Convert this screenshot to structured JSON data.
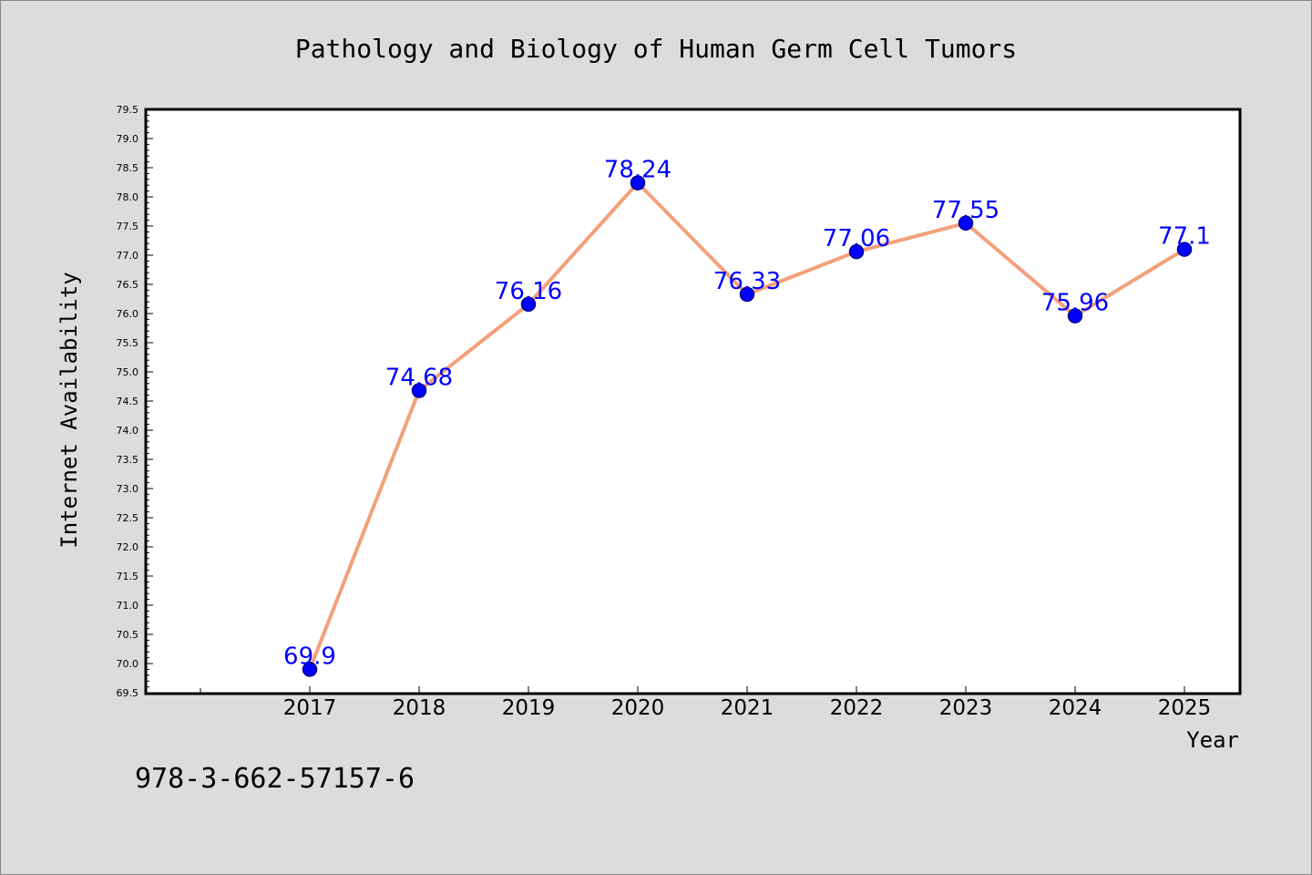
{
  "chart_data": {
    "type": "line",
    "title": "Pathology and Biology of Human Germ Cell Tumors",
    "xlabel": "Year",
    "ylabel": "Internet Availability",
    "categories": [
      "2017",
      "2018",
      "2019",
      "2020",
      "2021",
      "2022",
      "2023",
      "2024",
      "2025"
    ],
    "values": [
      69.9,
      74.68,
      76.16,
      78.24,
      76.33,
      77.06,
      77.55,
      75.96,
      77.1
    ],
    "ylim": [
      69.5,
      79.5
    ],
    "yticks": [
      "69.5",
      "70.0",
      "70.5",
      "71.0",
      "71.5",
      "72.0",
      "72.5",
      "73.0",
      "73.5",
      "74.0",
      "74.5",
      "75.0",
      "75.5",
      "76.0",
      "76.5",
      "77.0",
      "77.5",
      "78.0",
      "78.5",
      "79.0",
      "79.5"
    ],
    "grid": false,
    "data_labels": true,
    "colors": {
      "line": "#f4a07a",
      "marker": "#0000ff",
      "marker_edge": "#00008b",
      "label": "#0000ff",
      "background": "#dcdcdc",
      "plot_background": "#ffffff"
    }
  },
  "footer_text": "978-3-662-57157-6"
}
